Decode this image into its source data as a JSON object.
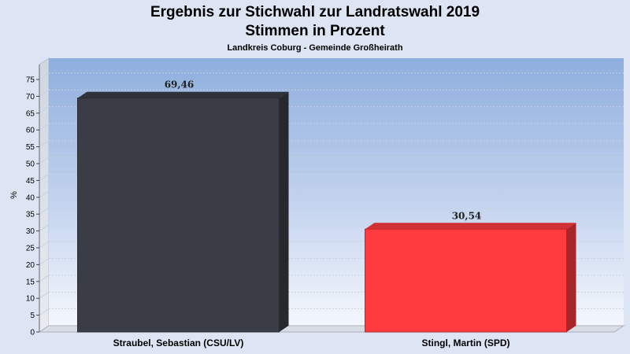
{
  "header": {
    "title_line1": "Ergebnis zur Stichwahl zur Landratswahl 2019",
    "title_line2": "Stimmen in Prozent",
    "subtitle": "Landkreis Coburg - Gemeinde Großheirath"
  },
  "chart_data": {
    "type": "bar",
    "ylabel": "%",
    "xlabel": "",
    "ylim": [
      0,
      75
    ],
    "ytick_step": 5,
    "grid": true,
    "categories": [
      "Straubel, Sebastian (CSU/LV)",
      "Stingl, Martin (SPD)"
    ],
    "values": [
      69.46,
      30.54
    ],
    "value_labels": [
      "69,46",
      "30,54"
    ],
    "colors": [
      "#3a3d45",
      "#ff3b3f"
    ]
  }
}
